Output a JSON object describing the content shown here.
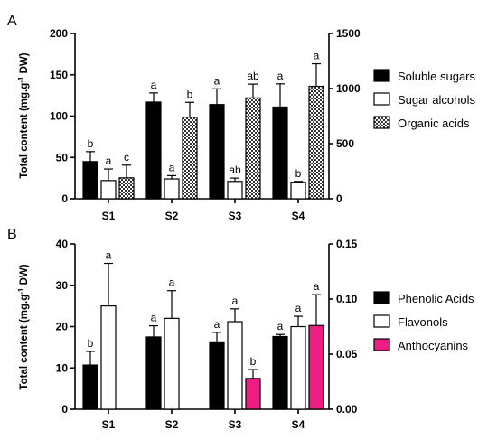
{
  "chart_data": [
    {
      "type": "bar",
      "panel_label": "A",
      "categories": [
        "S1",
        "S2",
        "S3",
        "S4"
      ],
      "ylabel_prefix": "Total content (mg.g",
      "ylabel_sup": "-1",
      "ylabel_suffix": " DW)",
      "ylim_left": [
        0,
        200
      ],
      "yticks_left": [
        0,
        50,
        100,
        150,
        200
      ],
      "ylim_right": [
        0,
        1500
      ],
      "yticks_right": [
        0,
        500,
        1000,
        1500
      ],
      "legend_position": "right",
      "series": [
        {
          "name": "Soluble sugars",
          "axis": "left",
          "pattern": "solid-black",
          "values": [
            45,
            117,
            114,
            111
          ],
          "errors": [
            12,
            11,
            19,
            28
          ],
          "letters": [
            "b",
            "a",
            "a",
            "a"
          ]
        },
        {
          "name": "Sugar alcohols",
          "axis": "left",
          "pattern": "white",
          "values": [
            22,
            24,
            21,
            20
          ],
          "errors": [
            14,
            4,
            4,
            1
          ],
          "letters": [
            "a",
            "a",
            "ab",
            "b"
          ]
        },
        {
          "name": "Organic acids",
          "axis": "right",
          "pattern": "checker",
          "values": [
            190,
            740,
            915,
            1020
          ],
          "errors": [
            115,
            135,
            125,
            205
          ],
          "letters": [
            "c",
            "b",
            "ab",
            "a"
          ]
        }
      ]
    },
    {
      "type": "bar",
      "panel_label": "B",
      "categories": [
        "S1",
        "S2",
        "S3",
        "S4"
      ],
      "ylabel_prefix": "Total content (mg.g",
      "ylabel_sup": "-1",
      "ylabel_suffix": " DW)",
      "ylim_left": [
        0,
        40
      ],
      "yticks_left": [
        0,
        10,
        20,
        30,
        40
      ],
      "ylim_right": [
        0,
        0.15
      ],
      "yticks_right": [
        "0.00",
        "0.05",
        "0.10",
        "0.15"
      ],
      "legend_position": "right",
      "series": [
        {
          "name": "Phenolic Acids",
          "axis": "left",
          "pattern": "solid-black",
          "values": [
            10.7,
            17.5,
            16.3,
            17.6
          ],
          "errors": [
            3.3,
            2.7,
            2.3,
            0.5
          ],
          "letters": [
            "b",
            "a",
            "a",
            "a"
          ]
        },
        {
          "name": "Flavonols",
          "axis": "left",
          "pattern": "white",
          "values": [
            25,
            22,
            21.2,
            20
          ],
          "errors": [
            10.3,
            6.7,
            3.1,
            2.5
          ],
          "letters": [
            "a",
            "a",
            "a",
            "a"
          ]
        },
        {
          "name": "Anthocyanins",
          "axis": "right",
          "pattern": "magenta",
          "values": [
            null,
            null,
            0.028,
            0.076
          ],
          "errors": [
            null,
            null,
            0.008,
            0.028
          ],
          "letters": [
            "",
            "",
            "b",
            "a"
          ]
        }
      ]
    }
  ],
  "colors": {
    "solid-black": "#000000",
    "white": "#ffffff",
    "magenta": "#ee1d84",
    "checker-dark": "#333333",
    "checker-light": "#ffffff"
  }
}
